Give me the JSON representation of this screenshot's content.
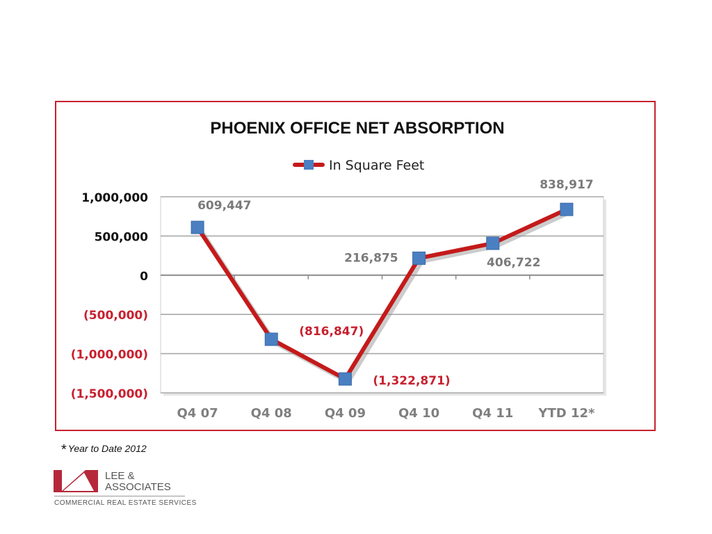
{
  "chart_data": {
    "type": "line",
    "title": "PHOENIX OFFICE NET ABSORPTION",
    "categories": [
      "Q4 07",
      "Q4 08",
      "Q4 09",
      "Q4 10",
      "Q4 11",
      "YTD 12*"
    ],
    "series": [
      {
        "name": "In Square Feet",
        "values": [
          609447,
          -816847,
          -1322871,
          216875,
          406722,
          838917
        ]
      }
    ],
    "data_labels": [
      "609,447",
      "(816,847)",
      "(1,322,871)",
      "216,875",
      "406,722",
      "838,917"
    ],
    "y_ticks": [
      1000000,
      500000,
      0,
      -500000,
      -1000000,
      -1500000
    ],
    "y_tick_labels": [
      "1,000,000",
      "500,000",
      "0",
      "(500,000)",
      "(1,000,000)",
      "(1,500,000)"
    ],
    "ylim": [
      -1500000,
      1000000
    ],
    "grid": true,
    "legend_position": "top-center",
    "colors": {
      "line": "#c41a1a",
      "marker": "#4a7fc1",
      "negative_text": "#c8202f",
      "data_label": "#7a7a7a",
      "frame": "#c8202f"
    }
  },
  "footnote": {
    "star": "*",
    "text": "Year to Date 2012"
  },
  "logo": {
    "name_line1": "LEE &",
    "name_line2": "ASSOCIATES",
    "tagline": "COMMERCIAL REAL ESTATE SERVICES"
  }
}
